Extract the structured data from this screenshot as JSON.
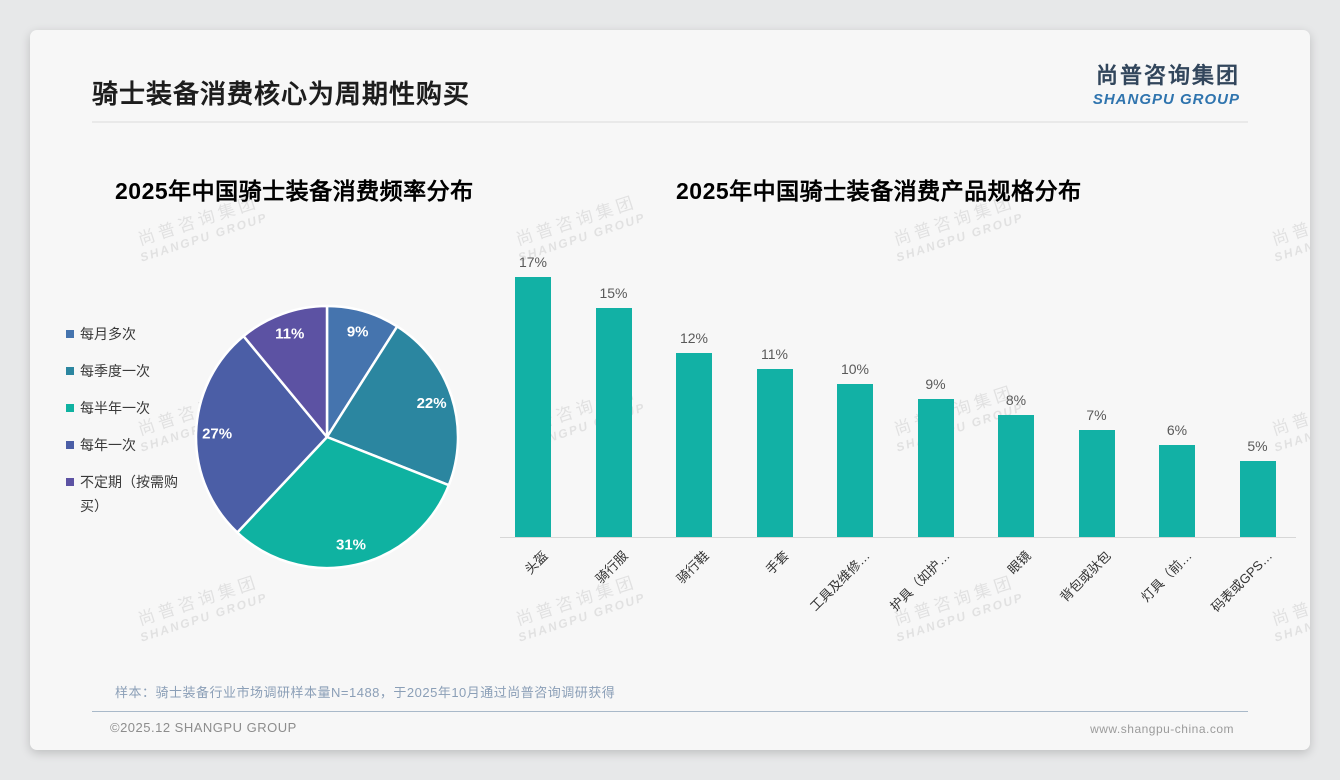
{
  "page": {
    "title": "骑士装备消费核心为周期性购买",
    "logo": {
      "zh": "尚普咨询集团",
      "en": "SHANGPU GROUP"
    },
    "watermark": {
      "zh": "尚普咨询集团",
      "en": "SHANGPU GROUP"
    },
    "note": "样本：骑士装备行业市场调研样本量N=1488，于2025年10月通过尚普咨询调研获得",
    "footer": {
      "left": "©2025.12 SHANGPU GROUP",
      "right": "www.shangpu-china.com"
    }
  },
  "chart_data": [
    {
      "type": "pie",
      "title": "2025年中国骑士装备消费频率分布",
      "labels": [
        "每月多次",
        "每季度一次",
        "每半年一次",
        "每年一次",
        "不定期（按需购买）"
      ],
      "values": [
        9,
        22,
        31,
        27,
        11
      ],
      "unit": "%",
      "colors": [
        "#4574ae",
        "#2b86a0",
        "#0fb2a1",
        "#4b5ea6",
        "#5c52a3"
      ],
      "legend_position": "left",
      "start_angle_deg": 0,
      "direction": "clockwise",
      "data_label_color": "#ffffff"
    },
    {
      "type": "bar",
      "title": "2025年中国骑士装备消费产品规格分布",
      "categories": [
        "头盔",
        "骑行服",
        "骑行鞋",
        "手套",
        "工具及维修…",
        "护具（如护…",
        "眼镜",
        "背包或驮包",
        "灯具（前…",
        "码表或GPS…"
      ],
      "values": [
        17,
        15,
        12,
        11,
        10,
        9,
        8,
        7,
        6,
        5
      ],
      "unit": "%",
      "bar_color": "#12b1a5",
      "ylim": [
        0,
        18
      ],
      "grid": false,
      "xlabel": "",
      "ylabel": "",
      "value_labels": "above bars",
      "category_label_rotation_deg": 45
    }
  ]
}
